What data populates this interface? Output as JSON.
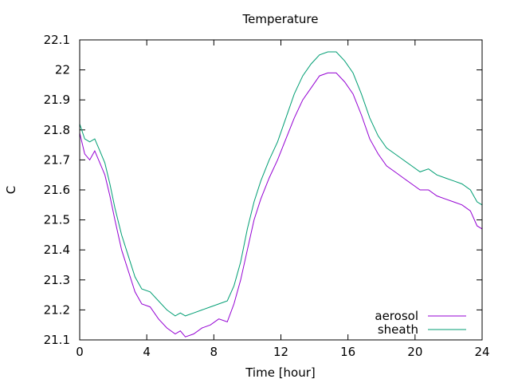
{
  "chart_data": {
    "type": "line",
    "title": "Temperature",
    "xlabel": "Time [hour]",
    "ylabel": "C",
    "xlim": [
      0,
      24
    ],
    "ylim": [
      21.1,
      22.1
    ],
    "xticks": [
      0,
      4,
      8,
      12,
      16,
      20,
      24
    ],
    "xtick_labels": [
      "0",
      "4",
      "8",
      "12",
      "16",
      "20",
      "24"
    ],
    "yticks": [
      21.1,
      21.2,
      21.3,
      21.4,
      21.5,
      21.6,
      21.7,
      21.8,
      21.9,
      22.0,
      22.1
    ],
    "ytick_labels": [
      "21.1",
      "21.2",
      "21.3",
      "21.4",
      "21.5",
      "21.6",
      "21.7",
      "21.8",
      "21.9",
      "22",
      "22.1"
    ],
    "grid": false,
    "legend_position": "bottom-right",
    "series": [
      {
        "name": "aerosol",
        "color": "#9400d3",
        "x": [
          0,
          0.3,
          0.6,
          0.9,
          1.2,
          1.5,
          1.8,
          2.1,
          2.5,
          2.9,
          3.3,
          3.7,
          4.2,
          4.7,
          5.2,
          5.7,
          6.0,
          6.3,
          6.8,
          7.3,
          7.8,
          8.3,
          8.8,
          9.2,
          9.6,
          10.0,
          10.4,
          10.8,
          11.3,
          11.8,
          12.3,
          12.8,
          13.3,
          13.8,
          14.3,
          14.8,
          15.3,
          15.8,
          16.3,
          16.8,
          17.3,
          17.8,
          18.3,
          18.8,
          19.3,
          19.8,
          20.3,
          20.8,
          21.3,
          21.8,
          22.3,
          22.8,
          23.3,
          23.7,
          24.0
        ],
        "y": [
          21.79,
          21.72,
          21.7,
          21.73,
          21.69,
          21.65,
          21.58,
          21.5,
          21.4,
          21.33,
          21.26,
          21.22,
          21.21,
          21.17,
          21.14,
          21.12,
          21.13,
          21.11,
          21.12,
          21.14,
          21.15,
          21.17,
          21.16,
          21.22,
          21.3,
          21.4,
          21.5,
          21.57,
          21.64,
          21.7,
          21.77,
          21.84,
          21.9,
          21.94,
          21.98,
          21.99,
          21.99,
          21.96,
          21.92,
          21.85,
          21.77,
          21.72,
          21.68,
          21.66,
          21.64,
          21.62,
          21.6,
          21.6,
          21.58,
          21.57,
          21.56,
          21.55,
          21.53,
          21.48,
          21.47
        ]
      },
      {
        "name": "sheath",
        "color": "#009e73",
        "x": [
          0,
          0.3,
          0.6,
          0.9,
          1.2,
          1.5,
          1.8,
          2.1,
          2.5,
          2.9,
          3.3,
          3.7,
          4.2,
          4.7,
          5.2,
          5.7,
          6.0,
          6.3,
          6.8,
          7.3,
          7.8,
          8.3,
          8.8,
          9.2,
          9.6,
          10.0,
          10.4,
          10.8,
          11.3,
          11.8,
          12.3,
          12.8,
          13.3,
          13.8,
          14.3,
          14.8,
          15.3,
          15.8,
          16.3,
          16.8,
          17.3,
          17.8,
          18.3,
          18.8,
          19.3,
          19.8,
          20.3,
          20.8,
          21.3,
          21.8,
          22.3,
          22.8,
          23.3,
          23.7,
          24.0
        ],
        "y": [
          21.82,
          21.77,
          21.76,
          21.77,
          21.73,
          21.69,
          21.62,
          21.54,
          21.45,
          21.38,
          21.31,
          21.27,
          21.26,
          21.23,
          21.2,
          21.18,
          21.19,
          21.18,
          21.19,
          21.2,
          21.21,
          21.22,
          21.23,
          21.28,
          21.36,
          21.47,
          21.56,
          21.63,
          21.7,
          21.76,
          21.84,
          21.92,
          21.98,
          22.02,
          22.05,
          22.06,
          22.06,
          22.03,
          21.99,
          21.92,
          21.84,
          21.78,
          21.74,
          21.72,
          21.7,
          21.68,
          21.66,
          21.67,
          21.65,
          21.64,
          21.63,
          21.62,
          21.6,
          21.56,
          21.55
        ]
      }
    ]
  }
}
